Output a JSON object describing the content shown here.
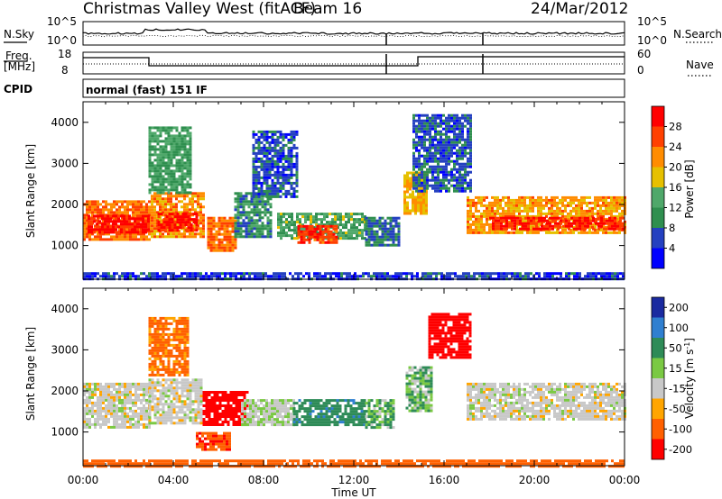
{
  "header": {
    "station": "Christmas Valley West (fitACF)",
    "beam": "Beam 16",
    "date": "24/Mar/2012"
  },
  "strip_labels": {
    "nsky": "N.Sky",
    "nsky_top": "10^5",
    "nsky_bot": "10^0",
    "nsearch": "N.Search",
    "nsearch_top": "10^5",
    "nsearch_bot": "10^0",
    "freq_line1": "Freq.",
    "freq_line2": "[MHz]",
    "freq_top": "18",
    "freq_bot": "8",
    "nave": "Nave",
    "nave_top": "60",
    "nave_bot": "0",
    "cpid": "CPID",
    "cpid_value": "normal (fast) 151 IF"
  },
  "chart_data": [
    {
      "type": "heatmap",
      "panel": "power",
      "ylabel": "Slant Range [km]",
      "xlabel": "Time UT",
      "x_ticks": [
        "00:00",
        "04:00",
        "08:00",
        "12:00",
        "16:00",
        "20:00",
        "00:00"
      ],
      "xlim_hours": [
        0,
        24
      ],
      "y_ticks": [
        1000,
        2000,
        3000,
        4000
      ],
      "ylim": [
        180,
        4500
      ],
      "colorbar": {
        "label": "Power [dB]",
        "ticks": [
          "4",
          "8",
          "12",
          "16",
          "20",
          "24",
          "28"
        ],
        "range": [
          0,
          32
        ],
        "colors": [
          "#0000ff",
          "#2440c0",
          "#2f8f4f",
          "#4fa86a",
          "#e6c000",
          "#ff8c00",
          "#ff4000",
          "#ff0000"
        ]
      },
      "regions": [
        {
          "t0": 0.0,
          "t1": 3.0,
          "r0": 1150,
          "r1": 2100,
          "value": 24
        },
        {
          "t0": 0.2,
          "t1": 2.9,
          "r0": 1300,
          "r1": 1750,
          "value": 30
        },
        {
          "t0": 3.0,
          "t1": 5.4,
          "r0": 1200,
          "r1": 2300,
          "value": 22
        },
        {
          "t0": 3.3,
          "t1": 5.0,
          "r0": 1400,
          "r1": 1800,
          "value": 29
        },
        {
          "t0": 2.9,
          "t1": 4.8,
          "r0": 2300,
          "r1": 3900,
          "value": 12
        },
        {
          "t0": 5.5,
          "t1": 6.8,
          "r0": 900,
          "r1": 1700,
          "value": 24
        },
        {
          "t0": 6.7,
          "t1": 8.3,
          "r0": 1200,
          "r1": 2300,
          "value": 10
        },
        {
          "t0": 7.5,
          "t1": 9.5,
          "r0": 2200,
          "r1": 3800,
          "value": 6
        },
        {
          "t0": 8.6,
          "t1": 12.5,
          "r0": 1200,
          "r1": 1800,
          "value": 13
        },
        {
          "t0": 9.5,
          "t1": 11.2,
          "r0": 1100,
          "r1": 1500,
          "value": 27
        },
        {
          "t0": 12.5,
          "t1": 14.0,
          "r0": 1000,
          "r1": 1700,
          "value": 8
        },
        {
          "t0": 14.2,
          "t1": 15.2,
          "r0": 1800,
          "r1": 2800,
          "value": 20
        },
        {
          "t0": 14.6,
          "t1": 17.2,
          "r0": 2300,
          "r1": 4200,
          "value": 7
        },
        {
          "t0": 17.0,
          "t1": 24.0,
          "r0": 1300,
          "r1": 2200,
          "value": 21
        },
        {
          "t0": 18.0,
          "t1": 24.0,
          "r0": 1400,
          "r1": 1700,
          "value": 29
        },
        {
          "t0": 0.0,
          "t1": 24.0,
          "r0": 180,
          "r1": 350,
          "value": 5
        }
      ]
    },
    {
      "type": "heatmap",
      "panel": "velocity",
      "ylabel": "Slant Range [km]",
      "xlabel": "Time UT",
      "x_ticks": [
        "00:00",
        "04:00",
        "08:00",
        "12:00",
        "16:00",
        "20:00",
        "00:00"
      ],
      "xlim_hours": [
        0,
        24
      ],
      "y_ticks": [
        1000,
        2000,
        3000,
        4000
      ],
      "ylim": [
        180,
        4500
      ],
      "colorbar": {
        "label": "Velocity [m s^-1]",
        "ticks": [
          "200",
          "100",
          "50",
          "15",
          "-15",
          "-50",
          "-100",
          "-200"
        ],
        "colors": [
          "#1a2aa0",
          "#2f7fd0",
          "#2e8b57",
          "#7ac943",
          "#c8c8c8",
          "#ffa500",
          "#ff6000",
          "#ff0000"
        ]
      },
      "regions": [
        {
          "t0": 0.0,
          "t1": 3.0,
          "r0": 1100,
          "r1": 2200,
          "value": 0
        },
        {
          "t0": 2.9,
          "t1": 5.3,
          "r0": 1200,
          "r1": 2300,
          "value": 0
        },
        {
          "t0": 2.9,
          "t1": 4.6,
          "r0": 2400,
          "r1": 3800,
          "value": -60
        },
        {
          "t0": 5.3,
          "t1": 7.3,
          "r0": 1200,
          "r1": 2000,
          "value": -180
        },
        {
          "t0": 5.0,
          "t1": 6.5,
          "r0": 600,
          "r1": 1000,
          "value": -90
        },
        {
          "t0": 7.0,
          "t1": 9.3,
          "r0": 1200,
          "r1": 1800,
          "value": 10
        },
        {
          "t0": 9.3,
          "t1": 12.5,
          "r0": 1200,
          "r1": 1800,
          "value": 60
        },
        {
          "t0": 12.5,
          "t1": 13.8,
          "r0": 1100,
          "r1": 1800,
          "value": 30
        },
        {
          "t0": 14.3,
          "t1": 15.4,
          "r0": 1500,
          "r1": 2600,
          "value": 25
        },
        {
          "t0": 15.3,
          "t1": 17.2,
          "r0": 2800,
          "r1": 3900,
          "value": -180
        },
        {
          "t0": 17.0,
          "t1": 24.0,
          "r0": 1300,
          "r1": 2200,
          "value": 0
        },
        {
          "t0": 0.0,
          "t1": 24.0,
          "r0": 180,
          "r1": 330,
          "value": -70
        }
      ]
    }
  ]
}
